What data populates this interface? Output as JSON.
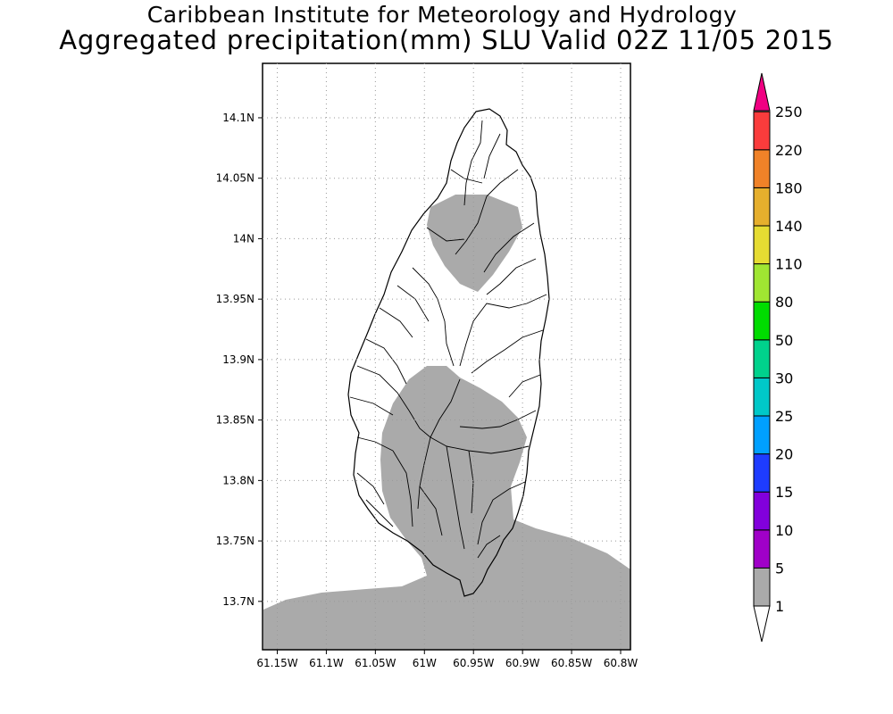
{
  "title": {
    "line1": "Caribbean Institute for Meteorology and Hydrology",
    "line2": "Aggregated precipitation(mm) SLU Valid 02Z 11/05 2015"
  },
  "map": {
    "lat_ticks": [
      "14.1N",
      "14.05N",
      "14N",
      "13.95N",
      "13.9N",
      "13.85N",
      "13.8N",
      "13.75N",
      "13.7N"
    ],
    "lon_ticks": [
      "61.15W",
      "61.1W",
      "61.05W",
      "61W",
      "60.95W",
      "60.9W",
      "60.85W",
      "60.8W"
    ],
    "lat_values": [
      14.1,
      14.05,
      14.0,
      13.95,
      13.9,
      13.85,
      13.8,
      13.75,
      13.7
    ],
    "lon_values": [
      -61.15,
      -61.1,
      -61.05,
      -61.0,
      -60.95,
      -60.9,
      -60.85,
      -60.8
    ],
    "lat_range": [
      13.66,
      14.145
    ],
    "lon_range": [
      -61.165,
      -60.79
    ],
    "grid": "dotted",
    "precip_fill_color": "#aaaaaa"
  },
  "colorbar": {
    "levels": [
      "1",
      "5",
      "10",
      "15",
      "20",
      "25",
      "30",
      "50",
      "80",
      "110",
      "140",
      "180",
      "220",
      "250"
    ],
    "colors": [
      "#aaaaaa",
      "#a000c8",
      "#8200dc",
      "#1e3cff",
      "#00a0ff",
      "#00c8c8",
      "#00d28c",
      "#00dc00",
      "#a0e632",
      "#e6dc32",
      "#e6af2d",
      "#f08228",
      "#fa3c3c",
      "#f00082"
    ],
    "lower_end_color": "#ffffff",
    "upper_end_color": "#f00082"
  }
}
